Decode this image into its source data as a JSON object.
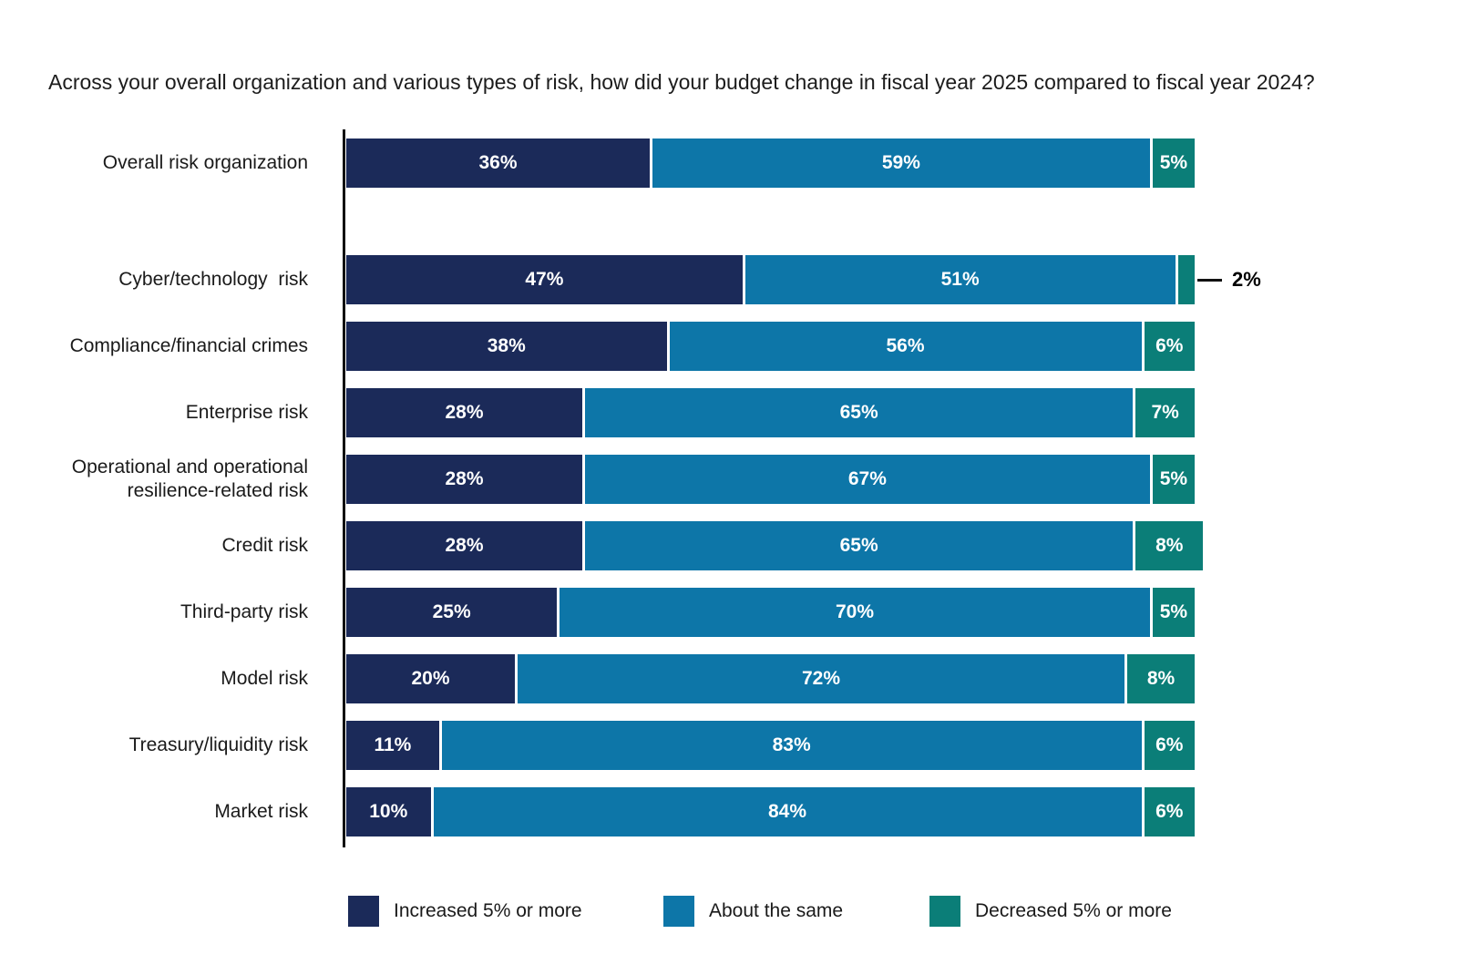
{
  "chart_data": {
    "type": "bar",
    "orientation": "horizontal",
    "stacked": true,
    "title": "Across your overall organization and various types of risk, how did your budget change in fiscal year 2025 compared to fiscal year 2024?",
    "value_suffix": "%",
    "categories": [
      "Overall risk organization",
      "Cyber/technology  risk",
      "Compliance/financial crimes",
      "Enterprise risk",
      "Operational and operational resilience-related risk",
      "Credit risk",
      "Third-party risk",
      "Model risk",
      "Treasury/liquidity risk",
      "Market risk"
    ],
    "series": [
      {
        "name": "Increased 5% or more",
        "color": "#1b2a59",
        "values": [
          36,
          47,
          38,
          28,
          28,
          28,
          25,
          20,
          11,
          10
        ]
      },
      {
        "name": "About the same",
        "color": "#0d76a8",
        "values": [
          59,
          51,
          56,
          65,
          67,
          65,
          70,
          72,
          83,
          84
        ]
      },
      {
        "name": "Decreased 5% or more",
        "color": "#0b7e78",
        "values": [
          5,
          2,
          6,
          7,
          5,
          8,
          5,
          8,
          6,
          6
        ]
      }
    ],
    "callout": {
      "category_index": 1,
      "series_index": 2,
      "label": "2%"
    },
    "x_axis": {
      "min": 0,
      "max": 100,
      "ticks_visible": false,
      "grid": false
    },
    "legend_position": "bottom",
    "colors": {
      "axis": "#111111",
      "label_text": "#1a1a1a",
      "value_text": "#ffffff",
      "background": "#ffffff"
    }
  }
}
